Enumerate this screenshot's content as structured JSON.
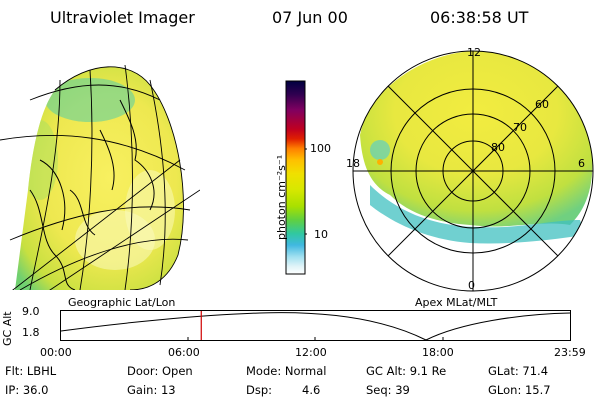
{
  "header": {
    "instrument": "Ultraviolet Imager",
    "date": "07 Jun 00",
    "time": "06:38:58 UT"
  },
  "colorbar": {
    "unit_label": "photon cm⁻²s⁻¹",
    "ticks": [
      "100",
      "10"
    ],
    "colors": [
      "#000040",
      "#300050",
      "#800060",
      "#c00020",
      "#e02000",
      "#ff8000",
      "#ffc000",
      "#f0e000",
      "#d8e800",
      "#a8e000",
      "#60d040",
      "#30c8a0",
      "#40b8e0",
      "#a0e0f0",
      "#e0f4f8",
      "#ffffff"
    ]
  },
  "left_panel": {
    "caption": "Geographic Lat/Lon"
  },
  "right_panel": {
    "caption": "Apex MLat/MLT",
    "mlt_labels": {
      "top": "12",
      "left": "18",
      "right": "6",
      "bottom": "0"
    },
    "lat_labels": [
      "60",
      "70",
      "80"
    ]
  },
  "altitude_plot": {
    "ylabel": "GC Alt",
    "yticks": [
      "9.0",
      "1.8"
    ],
    "xticks": [
      "00:00",
      "06:00",
      "12:00",
      "18:00",
      "23:59"
    ],
    "current_time_fraction": 0.276
  },
  "info": {
    "filter": "Flt: LBHL",
    "door": "Door: Open",
    "mode": "Mode: Normal",
    "gc_alt": "GC Alt: 9.1 Re",
    "glat": "GLat: 71.4",
    "ip": "IP: 36.0",
    "gain": "Gain: 13",
    "dsp_label": "Dsp:",
    "dsp_value": "4.6",
    "seq": "Seq: 39",
    "glon": "GLon: 15.7"
  }
}
